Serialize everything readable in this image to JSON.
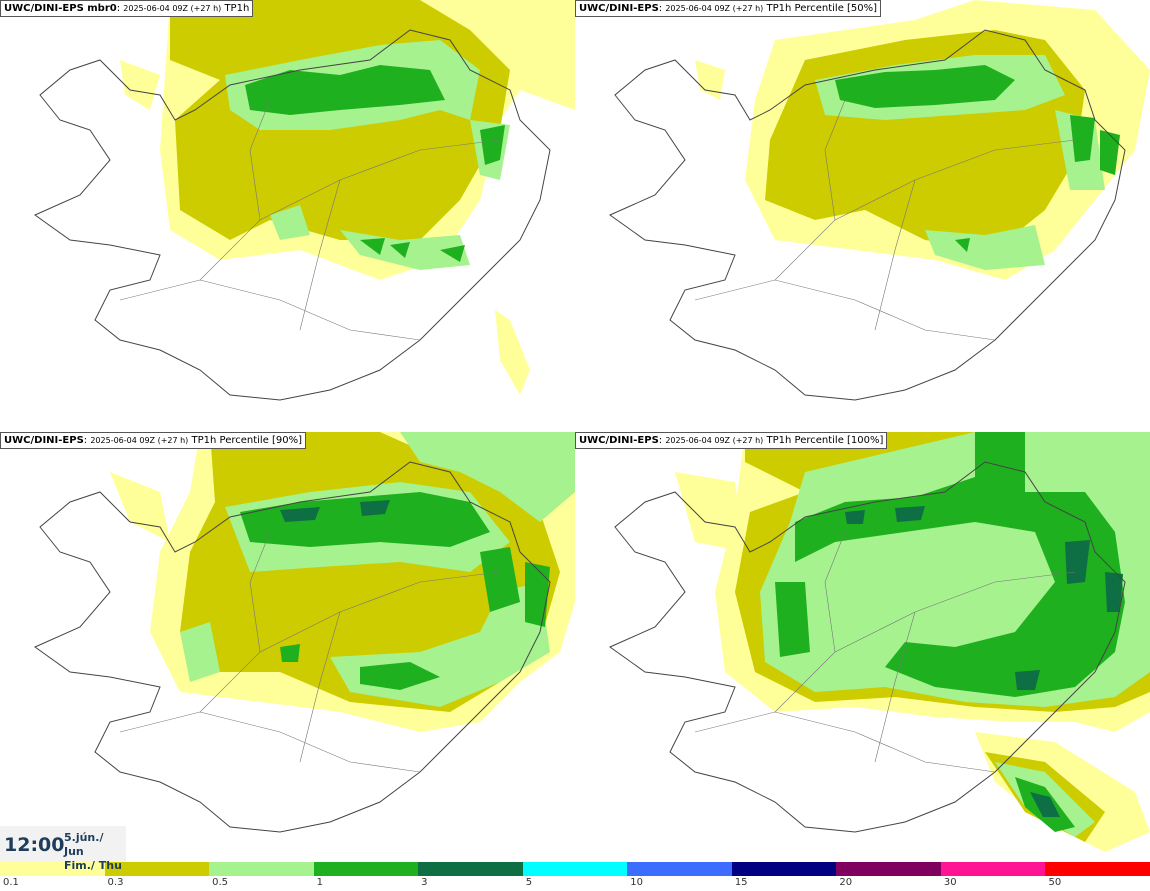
{
  "panels": [
    {
      "model": "UWC/DINI-EPS mbr0",
      "run": "2025-06-04 09Z (+27 h)",
      "field": "TP1h"
    },
    {
      "model": "UWC/DINI-EPS",
      "run": "2025-06-04 09Z (+27 h)",
      "field": "TP1h Percentile [50%]"
    },
    {
      "model": "UWC/DINI-EPS",
      "run": "2025-06-04 09Z (+27 h)",
      "field": "TP1h Percentile [90%]"
    },
    {
      "model": "UWC/DINI-EPS",
      "run": "2025-06-04 09Z (+27 h)",
      "field": "TP1h Percentile [100%]"
    }
  ],
  "valid_time": {
    "time": "12:00",
    "date_line1": "5.jún./ Jun",
    "date_line2": "Fim./ Thu"
  },
  "legend": {
    "ticks": [
      "0.1",
      "0.3",
      "0.5",
      "1",
      "3",
      "5",
      "10",
      "15",
      "20",
      "30",
      "50"
    ],
    "colors": [
      "#ffff99",
      "#cccc00",
      "#a6f28f",
      "#1fb01f",
      "#0f6f44",
      "#00ffff",
      "#3d6dff",
      "#000080",
      "#800060",
      "#ff1493",
      "#ff0000"
    ]
  },
  "map_colors": {
    "light": "#ffff99",
    "olive": "#cccc00",
    "lightgreen": "#a6f28f",
    "green": "#1fb01f",
    "darkgreen": "#0f6f44"
  }
}
